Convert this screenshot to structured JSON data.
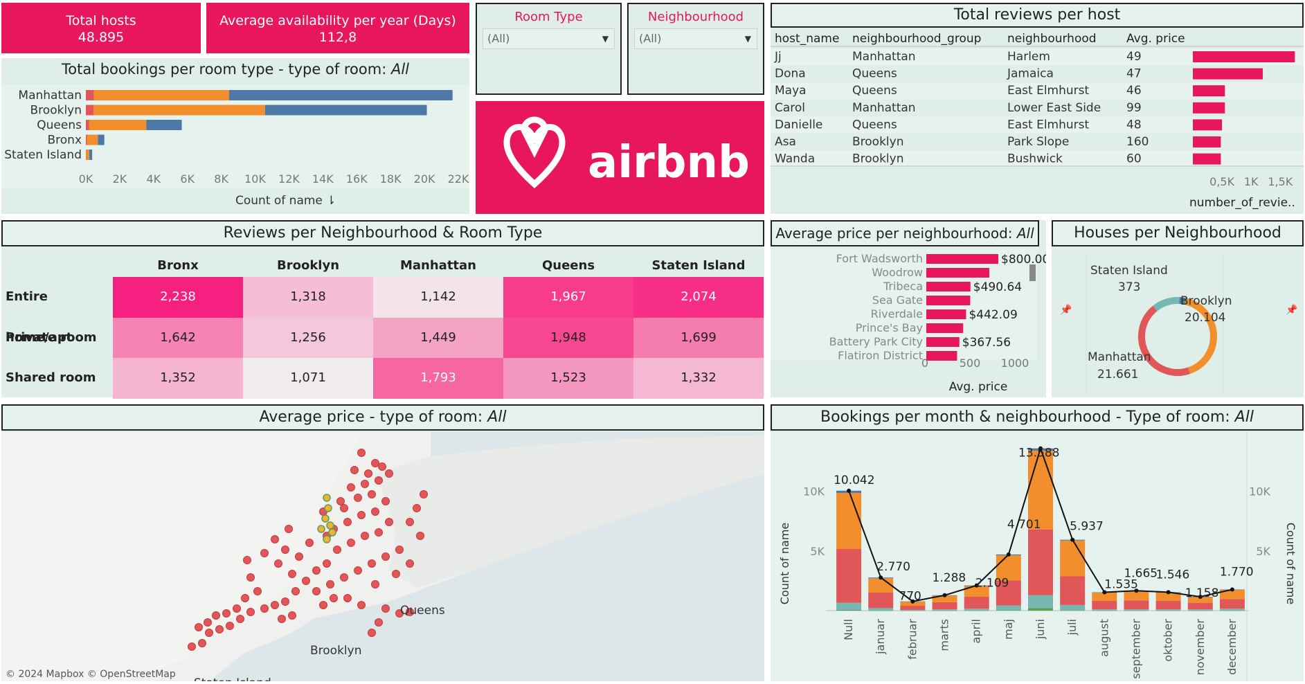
{
  "kpis": {
    "total_hosts_label": "Total hosts",
    "total_hosts_value": "48.895",
    "avg_avail_label": "Average availability per year (Days)",
    "avg_avail_value": "112,8"
  },
  "filters": {
    "room_type_label": "Room Type",
    "room_type_value": "(All)",
    "neighbourhood_label": "Neighbourhood",
    "neighbourhood_value": "(All)"
  },
  "logo": {
    "text": "airbnb",
    "color": "#e8175d"
  },
  "colors": {
    "pink": "#e8175d",
    "orange": "#f28e2b",
    "blue": "#4e79a7",
    "red": "#e15759",
    "teal": "#76b7b2",
    "panel": "#dfeee9"
  },
  "bookings_chart": {
    "title_prefix": "Total bookings per room type - type of room: ",
    "title_italic": "All",
    "xlabel": "Count of name",
    "sort_icon": "sort-icon",
    "ticks": [
      "0K",
      "2K",
      "4K",
      "6K",
      "8K",
      "10K",
      "12K",
      "14K",
      "16K",
      "18K",
      "20K",
      "22K"
    ]
  },
  "reviews_host": {
    "title": "Total reviews per host",
    "columns": [
      "host_name",
      "neighbourhood_group",
      "neighbourhood",
      "Avg. price"
    ],
    "rows": [
      {
        "host": "Jj",
        "group": "Manhattan",
        "hood": "Harlem",
        "price": "49"
      },
      {
        "host": "Dona",
        "group": "Queens",
        "hood": "Jamaica",
        "price": "47"
      },
      {
        "host": "Maya",
        "group": "Queens",
        "hood": "East Elmhurst",
        "price": "46"
      },
      {
        "host": "Carol",
        "group": "Manhattan",
        "hood": "Lower East Side",
        "price": "99"
      },
      {
        "host": "Danielle",
        "group": "Queens",
        "hood": "East Elmhurst",
        "price": "48"
      },
      {
        "host": "Asa",
        "group": "Brooklyn",
        "hood": "Park Slope",
        "price": "160"
      },
      {
        "host": "Wanda",
        "group": "Brooklyn",
        "hood": "Bushwick",
        "price": "60"
      }
    ],
    "ticks": [
      "0,5K",
      "1K",
      "1,5K"
    ],
    "xlabel": "number_of_revie.."
  },
  "heatmap": {
    "title": "Reviews per Neighbourhood & Room Type",
    "cols": [
      "Bronx",
      "Brooklyn",
      "Manhattan",
      "Queens",
      "Staten Island"
    ],
    "rows": [
      {
        "label": "Entire home/apt",
        "cells": [
          {
            "v": "2,238",
            "c": "#f5207f",
            "t": "#fff"
          },
          {
            "v": "1,318",
            "c": "#f5bed6",
            "t": "#222"
          },
          {
            "v": "1,142",
            "c": "#f3e4ea",
            "t": "#222"
          },
          {
            "v": "1,967",
            "c": "#f73c8c",
            "t": "#fff"
          },
          {
            "v": "2,074",
            "c": "#f62e86",
            "t": "#fff"
          }
        ]
      },
      {
        "label": "Private room",
        "cells": [
          {
            "v": "1,642",
            "c": "#f583b3",
            "t": "#222"
          },
          {
            "v": "1,256",
            "c": "#f5c7da",
            "t": "#222"
          },
          {
            "v": "1,449",
            "c": "#f5a3c5",
            "t": "#222"
          },
          {
            "v": "1,948",
            "c": "#f74790",
            "t": "#222"
          },
          {
            "v": "1,699",
            "c": "#f57cae",
            "t": "#222"
          }
        ]
      },
      {
        "label": "Shared room",
        "cells": [
          {
            "v": "1,352",
            "c": "#f5b5d0",
            "t": "#222"
          },
          {
            "v": "1,071",
            "c": "#f0ecee",
            "t": "#222"
          },
          {
            "v": "1,793",
            "c": "#f566a3",
            "t": "#fff"
          },
          {
            "v": "1,523",
            "c": "#f598bf",
            "t": "#222"
          },
          {
            "v": "1,332",
            "c": "#f5b8d2",
            "t": "#222"
          }
        ]
      }
    ]
  },
  "avg_price": {
    "title_prefix": "Average price per neighbourhood: ",
    "title_italic": "All",
    "labels": [
      "Fort Wadsworth",
      "Woodrow",
      "Tribeca",
      "Sea Gate",
      "Riverdale",
      "Prince's Bay",
      "Battery Park City",
      "Flatiron District"
    ],
    "price_labels": [
      "$800.00",
      "",
      "$490.64",
      "",
      "$442.09",
      "",
      "$367.56",
      ""
    ],
    "ticks": [
      "0",
      "500",
      "1000"
    ],
    "xlabel": "Avg. price"
  },
  "donut": {
    "title": "Houses per Neighbourhood",
    "staten_label": "Staten Island",
    "staten_value": "373",
    "brooklyn_label": "Brooklyn",
    "brooklyn_value": "20.104",
    "manhattan_label": "Manhattan",
    "manhattan_value": "21.661",
    "pin_icon": "pin-icon"
  },
  "map": {
    "title_prefix": "Average price - type of room: ",
    "title_italic": "All",
    "labels": [
      "Queens",
      "Brooklyn",
      "Staten Island"
    ],
    "credit": "© 2024 Mapbox © OpenStreetMap"
  },
  "monthly": {
    "title_prefix": "Bookings per month & neighbourhood - Type of room: ",
    "title_italic": "All",
    "ylabel": "Count of name",
    "yticks": [
      "5K",
      "10K"
    ],
    "months": [
      "Null",
      "januar",
      "februar",
      "marts",
      "april",
      "maj",
      "juni",
      "juli",
      "august",
      "september",
      "oktober",
      "november",
      "december"
    ],
    "totals_labels": [
      "10.042",
      "2.770",
      "770",
      "1.288",
      "2.109",
      "4.701",
      "13.588",
      "5.937",
      "1.535",
      "1.665",
      "1.546",
      "1.158",
      "1.770"
    ]
  },
  "chart_data": [
    {
      "type": "bar",
      "title": "Total bookings per room type - type of room: All",
      "categories": [
        "Manhattan",
        "Brooklyn",
        "Queens",
        "Bronx",
        "Staten Island"
      ],
      "series": [
        {
          "name": "Shared room",
          "values": [
            480,
            450,
            198,
            60,
            9
          ]
        },
        {
          "name": "Private room",
          "values": [
            7982,
            10132,
            3372,
            652,
            188
          ]
        },
        {
          "name": "Entire home/apt",
          "values": [
            13199,
            9559,
            2096,
            379,
            176
          ]
        }
      ],
      "xlabel": "Count of name",
      "xlim": [
        0,
        22000
      ]
    },
    {
      "type": "bar",
      "title": "Total reviews per host",
      "categories": [
        "Jj",
        "Dona",
        "Maya",
        "Carol",
        "Danielle",
        "Asa",
        "Wanda"
      ],
      "values": [
        1750,
        1200,
        550,
        550,
        500,
        480,
        480
      ],
      "xlabel": "number_of_revie..",
      "xlim": [
        0,
        1900
      ]
    },
    {
      "type": "heatmap",
      "title": "Reviews per Neighbourhood & Room Type",
      "x": [
        "Bronx",
        "Brooklyn",
        "Manhattan",
        "Queens",
        "Staten Island"
      ],
      "y": [
        "Entire home/apt",
        "Private room",
        "Shared room"
      ],
      "values": [
        [
          2238,
          1318,
          1142,
          1967,
          2074
        ],
        [
          1642,
          1256,
          1449,
          1948,
          1699
        ],
        [
          1352,
          1071,
          1793,
          1523,
          1332
        ]
      ]
    },
    {
      "type": "bar",
      "title": "Average price per neighbourhood: All",
      "categories": [
        "Fort Wadsworth",
        "Woodrow",
        "Tribeca",
        "Sea Gate",
        "Riverdale",
        "Prince's Bay",
        "Battery Park City",
        "Flatiron District"
      ],
      "values": [
        800,
        700,
        490.64,
        487.86,
        442.09,
        409.5,
        367.56,
        341.93
      ],
      "xlabel": "Avg. price",
      "xlim": [
        0,
        1000
      ]
    },
    {
      "type": "pie",
      "title": "Houses per Neighbourhood",
      "categories": [
        "Manhattan",
        "Brooklyn",
        "Queens",
        "Bronx",
        "Staten Island"
      ],
      "values": [
        21661,
        20104,
        5666,
        1091,
        373
      ]
    },
    {
      "type": "bar",
      "title": "Bookings per month & neighbourhood - Type of room: All",
      "categories": [
        "Null",
        "januar",
        "februar",
        "marts",
        "april",
        "maj",
        "juni",
        "juli",
        "august",
        "september",
        "oktober",
        "november",
        "december"
      ],
      "series": [
        {
          "name": "Staten Island",
          "values": [
            60,
            10,
            5,
            5,
            10,
            30,
            200,
            20,
            10,
            10,
            10,
            10,
            10
          ]
        },
        {
          "name": "Queens",
          "values": [
            600,
            200,
            50,
            100,
            150,
            400,
            1100,
            450,
            100,
            100,
            100,
            100,
            150
          ]
        },
        {
          "name": "Manhattan",
          "values": [
            4500,
            1300,
            350,
            600,
            1000,
            2100,
            5500,
            2400,
            700,
            750,
            700,
            550,
            800
          ]
        },
        {
          "name": "Brooklyn",
          "values": [
            4700,
            1200,
            350,
            550,
            900,
            2100,
            6600,
            3000,
            700,
            780,
            710,
            480,
            780
          ]
        },
        {
          "name": "Bronx",
          "values": [
            182,
            60,
            15,
            33,
            49,
            71,
            188,
            67,
            25,
            25,
            26,
            18,
            30
          ]
        }
      ],
      "totals": [
        10042,
        2770,
        770,
        1288,
        2109,
        4701,
        13588,
        5937,
        1535,
        1665,
        1546,
        1158,
        1770
      ],
      "ylabel": "Count of name",
      "ylim": [
        0,
        13800
      ]
    }
  ]
}
